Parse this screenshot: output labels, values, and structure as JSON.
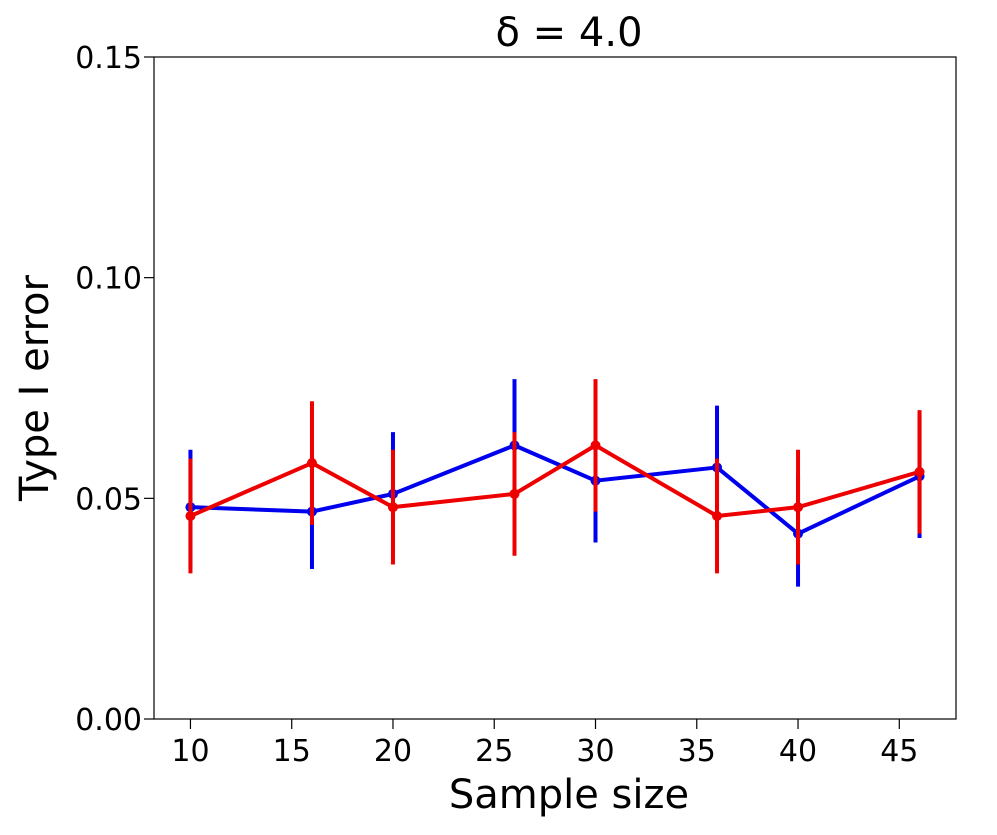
{
  "chart_data": {
    "type": "line",
    "title": "δ = 4.0",
    "xlabel": "Sample size",
    "ylabel": "Type I error",
    "xlim": [
      8.2,
      47.8
    ],
    "ylim": [
      0.0,
      0.15
    ],
    "xticks": [
      10,
      15,
      20,
      25,
      30,
      35,
      40,
      45
    ],
    "yticks": [
      0.0,
      0.05,
      0.1,
      0.15
    ],
    "ytick_labels": [
      "0.00",
      "0.05",
      "0.10",
      "0.15"
    ],
    "grid": false,
    "legend": "none",
    "series": [
      {
        "color": "#0000ee",
        "x": [
          10,
          16,
          20,
          26,
          30,
          36,
          40,
          46
        ],
        "y": [
          0.048,
          0.047,
          0.051,
          0.062,
          0.054,
          0.057,
          0.042,
          0.055
        ],
        "err_low": [
          0.034,
          0.034,
          0.037,
          0.047,
          0.04,
          0.043,
          0.03,
          0.041
        ],
        "err_high": [
          0.061,
          0.06,
          0.065,
          0.077,
          0.067,
          0.071,
          0.055,
          0.069
        ]
      },
      {
        "color": "#ee0000",
        "x": [
          10,
          16,
          20,
          26,
          30,
          36,
          40,
          46
        ],
        "y": [
          0.046,
          0.058,
          0.048,
          0.051,
          0.062,
          0.046,
          0.048,
          0.056
        ],
        "err_low": [
          0.033,
          0.044,
          0.035,
          0.037,
          0.047,
          0.033,
          0.035,
          0.042
        ],
        "err_high": [
          0.059,
          0.072,
          0.061,
          0.065,
          0.077,
          0.059,
          0.061,
          0.07
        ]
      }
    ]
  }
}
